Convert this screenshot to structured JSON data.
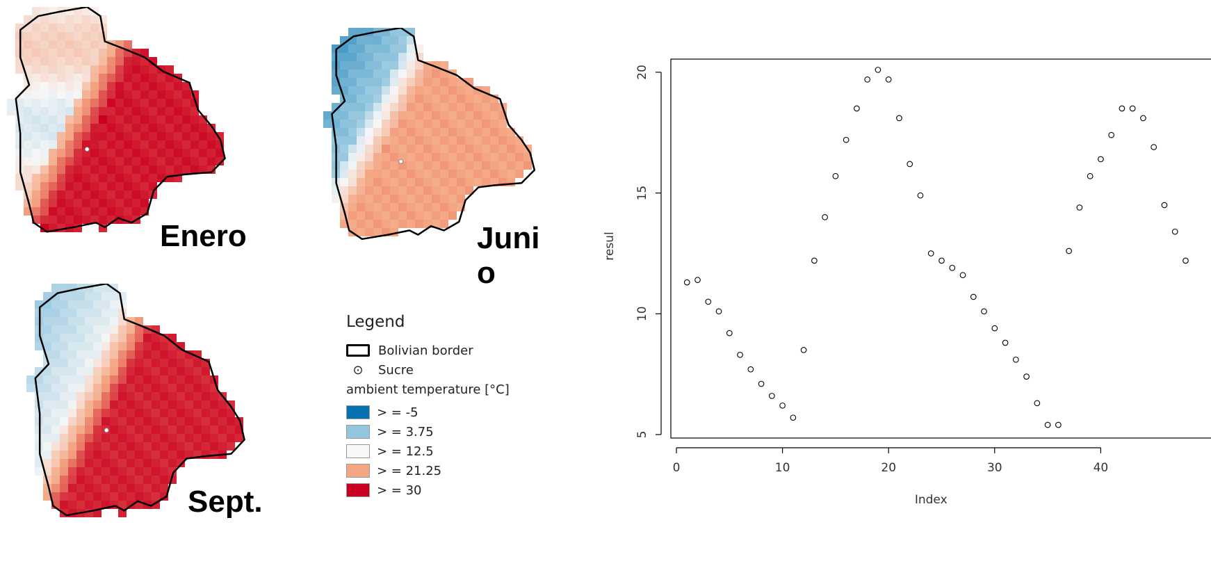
{
  "maps": [
    {
      "id": "enero",
      "label": "Enero",
      "palette": "january"
    },
    {
      "id": "junio",
      "label": "Junio",
      "label_break": [
        "Juni",
        "o"
      ],
      "palette": "june"
    },
    {
      "id": "sept",
      "label": "Sept.",
      "palette": "september"
    }
  ],
  "legend": {
    "title": "Legend",
    "border_label": "Bolivian border",
    "city_label": "Sucre",
    "scale_title": "ambient temperature [°C]",
    "classes": [
      {
        "label": "> = -5",
        "color": "#0571b0"
      },
      {
        "label": "> = 3.75",
        "color": "#92c5de"
      },
      {
        "label": "> = 12.5",
        "color": "#f7f7f7"
      },
      {
        "label": "> = 21.25",
        "color": "#f4a582"
      },
      {
        "label": "> = 30",
        "color": "#ca0020"
      }
    ]
  },
  "chart_data": {
    "type": "scatter",
    "xlabel": "Index",
    "ylabel": "resul",
    "xlim": [
      0,
      50
    ],
    "ylim": [
      5,
      20.4
    ],
    "xticks": [
      0,
      10,
      20,
      30,
      40
    ],
    "yticks": [
      5,
      10,
      15,
      20
    ],
    "x": [
      1,
      2,
      3,
      4,
      5,
      6,
      7,
      8,
      9,
      10,
      11,
      12,
      13,
      14,
      15,
      16,
      17,
      18,
      19,
      20,
      21,
      22,
      23,
      24,
      25,
      26,
      27,
      28,
      29,
      30,
      31,
      32,
      33,
      34,
      35,
      36,
      37,
      38,
      39,
      40,
      41,
      42,
      43,
      44,
      45,
      46,
      47,
      48
    ],
    "y": [
      11.3,
      11.4,
      10.5,
      10.1,
      9.2,
      8.3,
      7.7,
      7.1,
      6.6,
      6.2,
      5.7,
      8.5,
      12.2,
      14.0,
      15.7,
      17.2,
      18.5,
      19.7,
      20.1,
      19.7,
      18.1,
      16.2,
      14.9,
      12.5,
      12.2,
      11.9,
      11.6,
      10.7,
      10.1,
      9.4,
      8.8,
      8.1,
      7.4,
      6.3,
      5.4,
      5.4,
      12.6,
      14.4,
      15.7,
      16.4,
      17.4,
      18.5,
      18.5,
      18.1,
      16.9,
      14.5,
      13.4,
      12.2
    ],
    "grid": false,
    "box": true
  }
}
